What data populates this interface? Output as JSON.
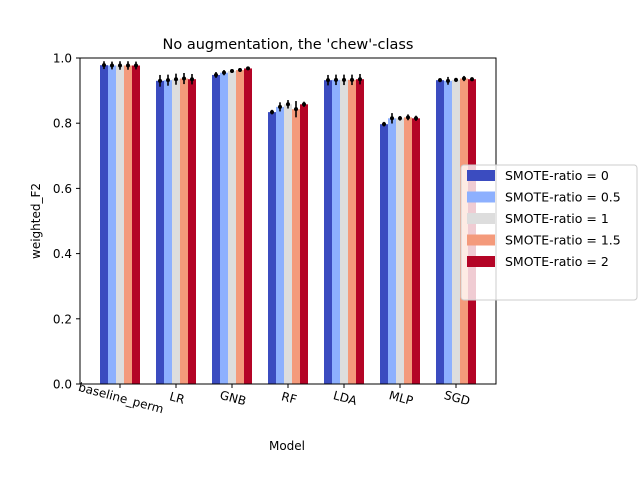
{
  "chart_data": {
    "type": "bar",
    "title": "No augmentation, the 'chew'-class",
    "xlabel": "Model",
    "ylabel": "weighted_F2",
    "ylim": [
      0,
      1
    ],
    "yticks": [
      "0.0",
      "0.2",
      "0.4",
      "0.6",
      "0.8",
      "1.0"
    ],
    "categories": [
      "baseline_perm",
      "LR",
      "GNB",
      "RF",
      "LDA",
      "MLP",
      "SGD"
    ],
    "legend_position": "right, outside plot",
    "series": [
      {
        "name": "SMOTE-ratio = 0",
        "color": "#3b4cc0",
        "values": [
          0.978,
          0.93,
          0.948,
          0.834,
          0.932,
          0.797,
          0.932
        ],
        "errors": [
          0.012,
          0.018,
          0.009,
          0.007,
          0.016,
          0.007,
          0.006
        ]
      },
      {
        "name": "SMOTE-ratio = 0.5",
        "color": "#8db0fe",
        "values": [
          0.977,
          0.932,
          0.955,
          0.85,
          0.933,
          0.815,
          0.93
        ],
        "errors": [
          0.012,
          0.017,
          0.008,
          0.014,
          0.016,
          0.016,
          0.012
        ]
      },
      {
        "name": "SMOTE-ratio = 1",
        "color": "#dddddd",
        "values": [
          0.977,
          0.935,
          0.96,
          0.858,
          0.933,
          0.815,
          0.933
        ],
        "errors": [
          0.013,
          0.017,
          0.005,
          0.013,
          0.016,
          0.007,
          0.006
        ]
      },
      {
        "name": "SMOTE-ratio = 1.5",
        "color": "#f49a7b",
        "values": [
          0.977,
          0.937,
          0.963,
          0.843,
          0.933,
          0.818,
          0.937
        ],
        "errors": [
          0.013,
          0.017,
          0.006,
          0.025,
          0.016,
          0.009,
          0.008
        ]
      },
      {
        "name": "SMOTE-ratio = 2",
        "color": "#b40426",
        "values": [
          0.977,
          0.935,
          0.968,
          0.858,
          0.935,
          0.815,
          0.935
        ],
        "errors": [
          0.012,
          0.016,
          0.005,
          0.008,
          0.016,
          0.008,
          0.006
        ]
      }
    ]
  }
}
